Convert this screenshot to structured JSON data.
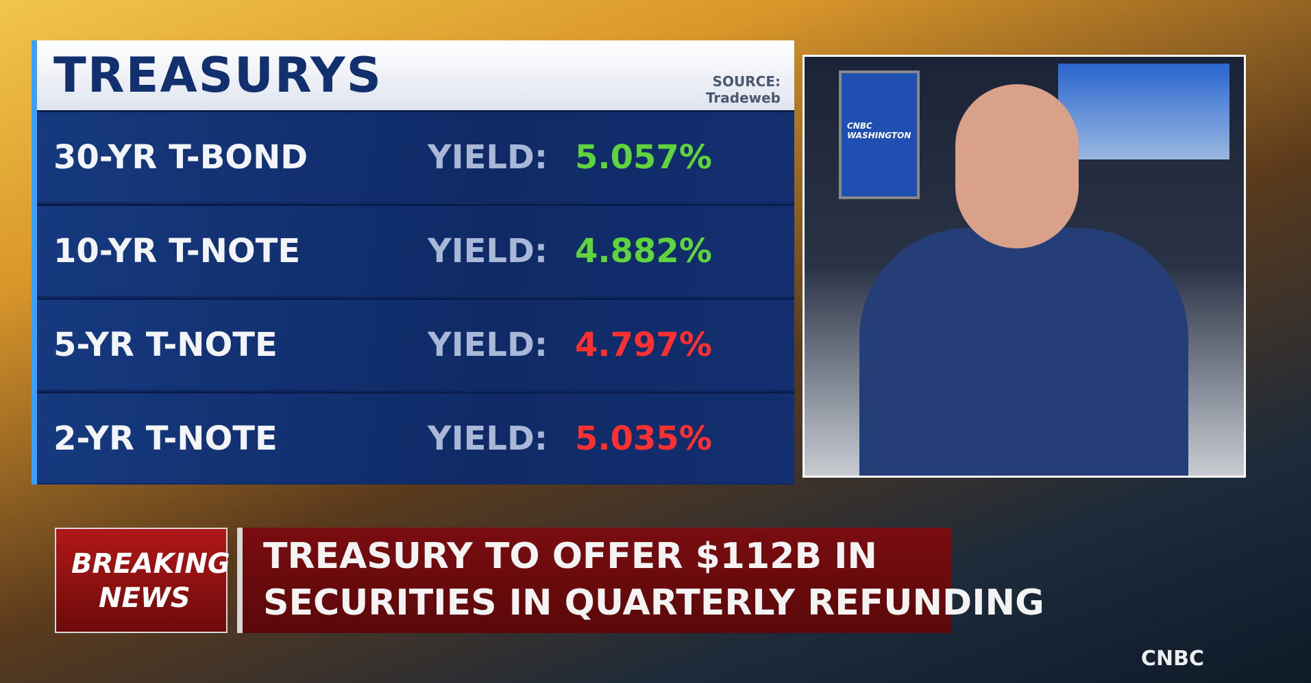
{
  "panel": {
    "title": "TREASURYS",
    "source_label": "SOURCE:",
    "source": "Tradeweb",
    "rows": [
      {
        "name": "30-YR T-BOND",
        "label": "YIELD:",
        "value": "5.057%",
        "color": "#5fd43c"
      },
      {
        "name": "10-YR T-NOTE",
        "label": "YIELD:",
        "value": "4.882%",
        "color": "#5fd43c"
      },
      {
        "name": "5-YR T-NOTE",
        "label": "YIELD:",
        "value": "4.797%",
        "color": "#ff3030"
      },
      {
        "name": "2-YR T-NOTE",
        "label": "YIELD:",
        "value": "5.035%",
        "color": "#ff3030"
      }
    ]
  },
  "video": {
    "screen_text": "CNBC WASHINGTON"
  },
  "banner": {
    "tag_line1": "BREAKING",
    "tag_line2": "NEWS",
    "headline_line1": "TREASURY TO OFFER $112B IN",
    "headline_line2": "SECURITIES IN QUARTERLY REFUNDING"
  },
  "logo": "CNBC"
}
